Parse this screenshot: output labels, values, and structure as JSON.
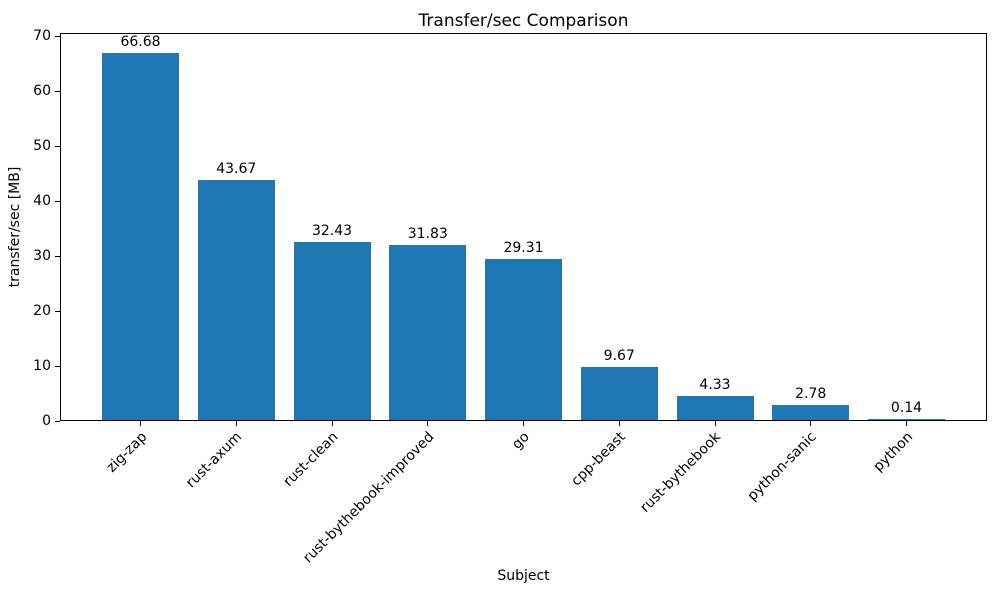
{
  "chart_data": {
    "type": "bar",
    "title": "Transfer/sec Comparison",
    "xlabel": "Subject",
    "ylabel": "transfer/sec [MB]",
    "categories": [
      "zig-zap",
      "rust-axum",
      "rust-clean",
      "rust-bythebook-improved",
      "go",
      "cpp-beast",
      "rust-bythebook",
      "python-sanic",
      "python"
    ],
    "values": [
      66.68,
      43.67,
      32.43,
      31.83,
      29.31,
      9.67,
      4.33,
      2.78,
      0.14
    ],
    "value_label_decimals": 2,
    "yticks": [
      0,
      10,
      20,
      30,
      40,
      50,
      60,
      70
    ],
    "ylim": [
      0,
      70.5
    ],
    "bar_color": "#1f77b4",
    "grid": false,
    "legend": null,
    "x_tick_rotation_deg": 45
  }
}
